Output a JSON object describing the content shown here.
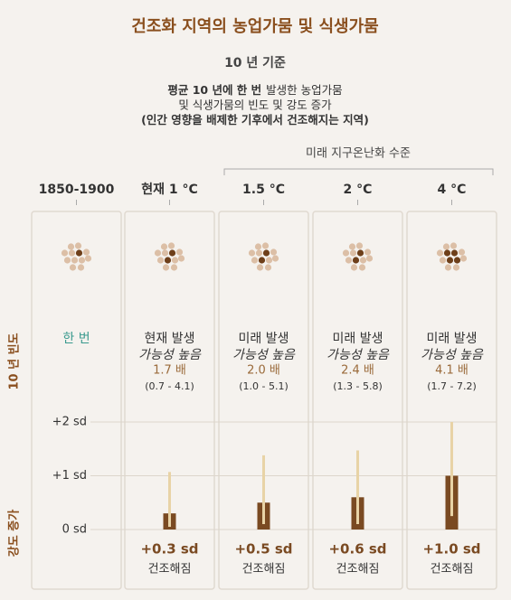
{
  "title": "건조화 지역의 농업가뭄 및 식생가뭄",
  "subtitle": "10 년 기준",
  "description": [
    [
      {
        "text": "평균 10 년에 한 번",
        "bold": true
      },
      {
        "text": "발생한 농업가뭄",
        "bold": false
      }
    ],
    [
      {
        "text": "및 식생가뭄의 빈도 및 강도 증가",
        "bold": false
      }
    ],
    [
      {
        "text": "(인간 영향을 배제한 기후에서 건조해지는 지역)",
        "bold": true
      }
    ]
  ],
  "future_label": "미래 지구온난화 수준",
  "frequency_axis_label": "10 년 빈도",
  "intensity_axis_label": "강도 증가",
  "effect_label": "건조해짐",
  "chart_data": {
    "type": "bar",
    "categories": [
      "1850-1900",
      "현재 1 °C",
      "1.5 °C",
      "2 °C",
      "4 °C"
    ],
    "frequency": [
      {
        "main": "한 번"
      },
      {
        "line1": "현재 발생",
        "line2": "가능성 높음",
        "factor": "1.7 배",
        "range": "(0.7 - 4.1)"
      },
      {
        "line1": "미래 발생",
        "line2": "가능성 높음",
        "factor": "2.0 배",
        "range": "(1.0 - 5.1)"
      },
      {
        "line1": "미래 발생",
        "line2": "가능성 높음",
        "factor": "2.4 배",
        "range": "(1.3 - 5.8)"
      },
      {
        "line1": "미래 발생",
        "line2": "가능성 높음",
        "factor": "4.1 배",
        "range": "(1.7 - 7.2)"
      }
    ],
    "values": [
      null,
      0.3,
      0.5,
      0.6,
      1.0
    ],
    "value_labels": [
      null,
      "+0.3 sd",
      "+0.5 sd",
      "+0.6 sd",
      "+1.0 sd"
    ],
    "ranges": [
      null,
      [
        0.05,
        1.07
      ],
      [
        0.1,
        1.38
      ],
      [
        0.1,
        1.47
      ],
      [
        0.25,
        2.0
      ]
    ],
    "color": "#7a4a22",
    "range_color": "#e8d3a6",
    "ylim": [
      0,
      2
    ],
    "yticks": [
      {
        "value": 2,
        "label": "+2 sd"
      },
      {
        "value": 1,
        "label": "+1 sd"
      },
      {
        "value": 0,
        "label": "0 sd"
      }
    ],
    "grid": true
  }
}
